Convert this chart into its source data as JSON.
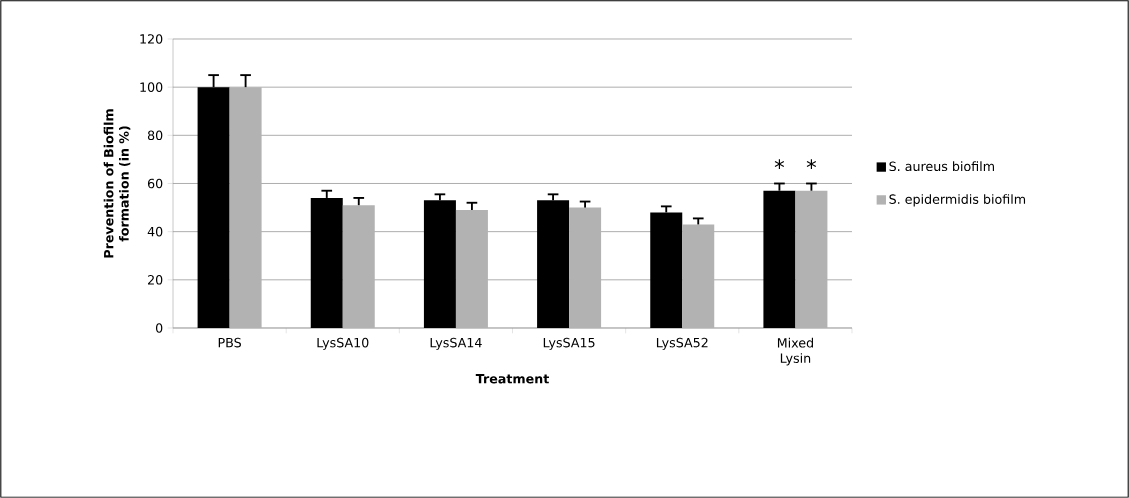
{
  "chart_data": {
    "type": "bar",
    "xlabel": "Treatment",
    "ylabel": "Prevention of Biofilm formation (in %)",
    "categories": [
      "PBS",
      "LysSA10",
      "LysSA14",
      "LysSA15",
      "LysSA52",
      "Mixed Lysin"
    ],
    "series": [
      {
        "name": "S. aureus biofilm",
        "color": "#000000",
        "values": [
          100,
          54,
          53,
          53,
          48,
          57
        ],
        "errors": [
          5,
          3,
          2.5,
          2.5,
          2.5,
          3
        ]
      },
      {
        "name": "S. epidermidis biofilm",
        "color": "#b2b2b2",
        "values": [
          100,
          51,
          49,
          50,
          43,
          57
        ],
        "errors": [
          5,
          3,
          3,
          2.5,
          2.5,
          3
        ]
      }
    ],
    "ylim": [
      0,
      120
    ],
    "yticks": [
      0,
      20,
      40,
      60,
      80,
      100,
      120
    ],
    "grid": "y",
    "legend": "right",
    "annotations": [
      "*",
      "*"
    ]
  }
}
